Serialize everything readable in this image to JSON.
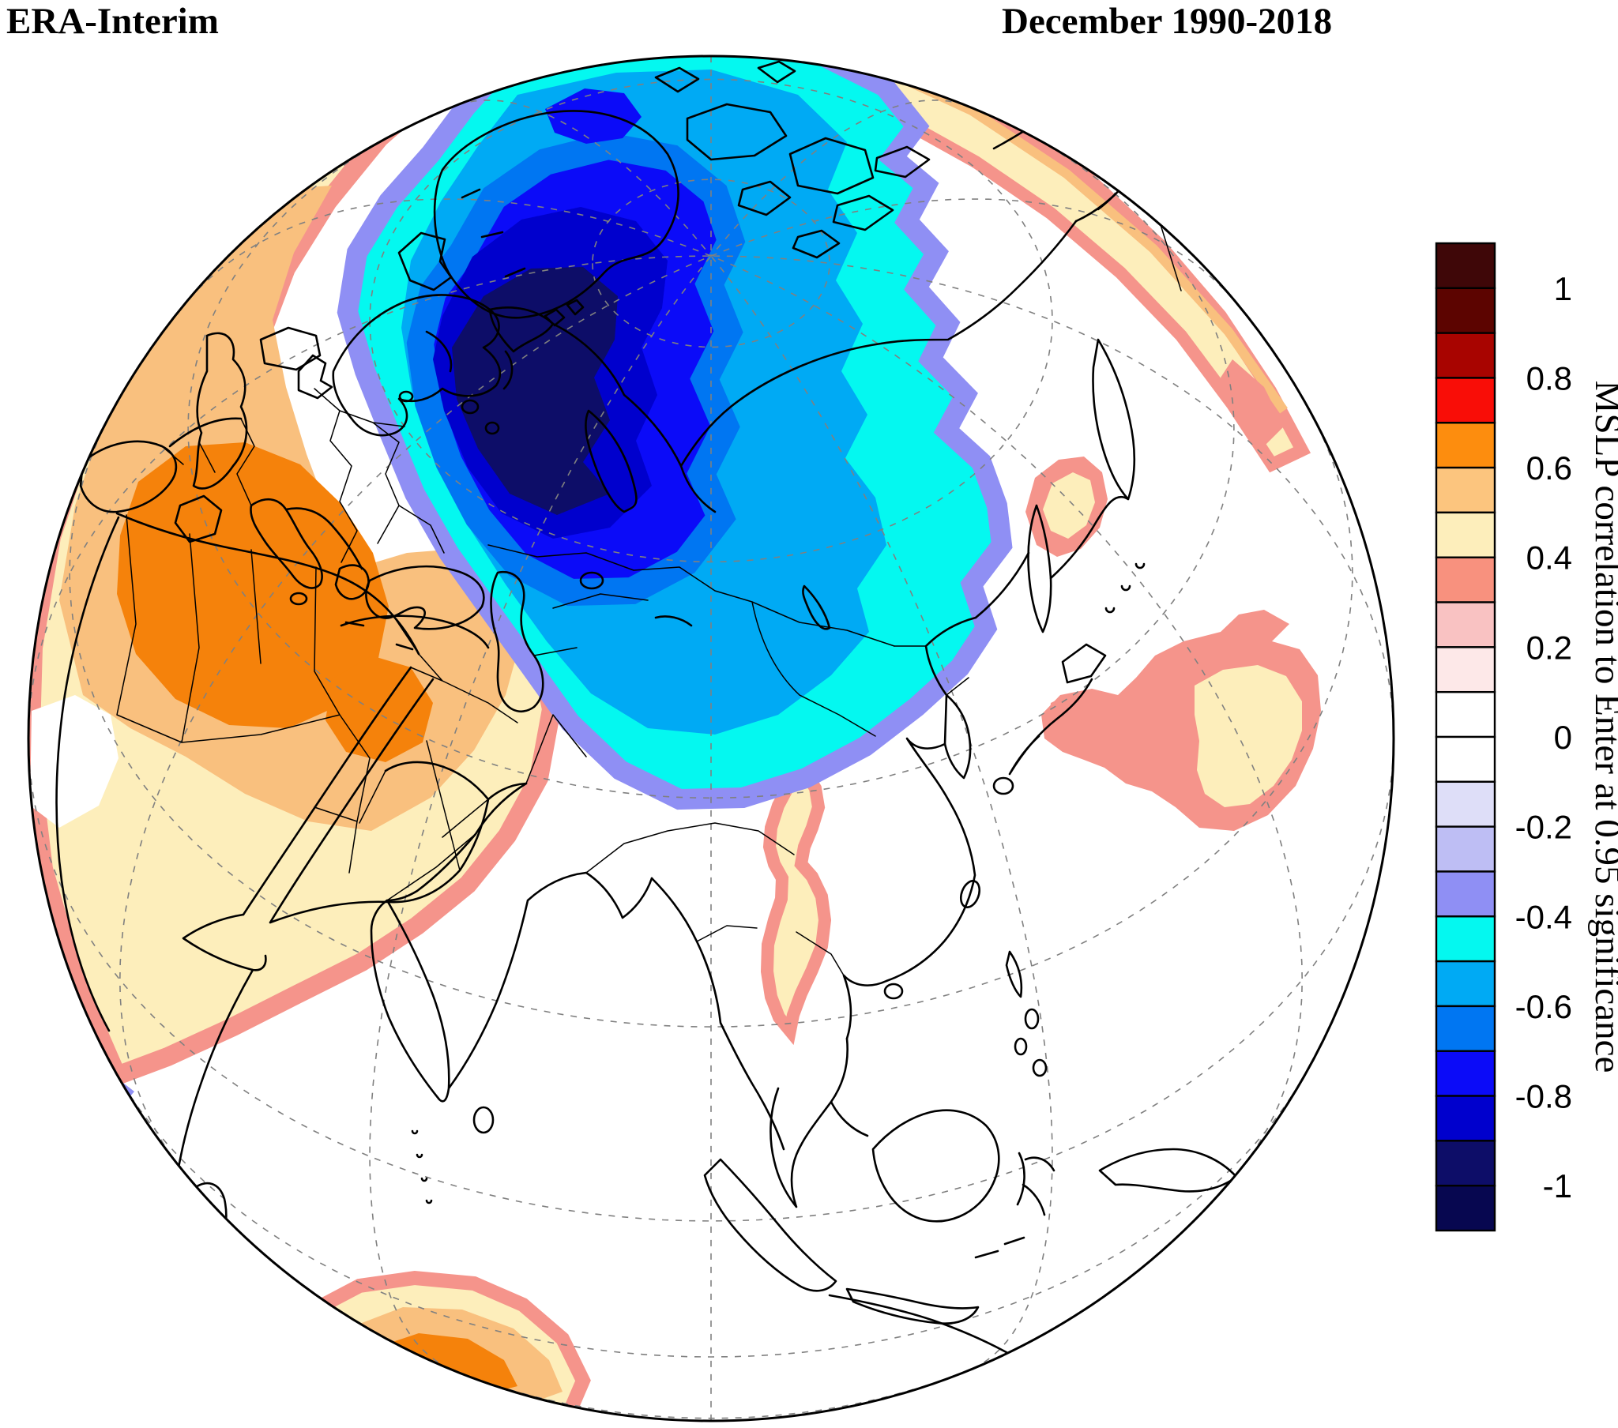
{
  "header": {
    "left_title": "ERA-Interim",
    "right_title": "December 1990-2018"
  },
  "colorbar": {
    "label": "MSLP correlation to Enter at 0.95 significance",
    "tick_labels": [
      "1",
      "0.8",
      "0.6",
      "0.4",
      "0.2",
      "0",
      "-0.2",
      "-0.4",
      "-0.6",
      "-0.8",
      "-1"
    ],
    "cell_colors_top_to_bottom": [
      "#3f0708",
      "#5c0400",
      "#a80400",
      "#f90d07",
      "#fd8d0e",
      "#fcc57e",
      "#fdeebb",
      "#f8917e",
      "#f9c2c2",
      "#fde8e8",
      "#ffffff",
      "#ffffff",
      "#dedef8",
      "#bebef4",
      "#8f8ff4",
      "#04f8f0",
      "#00aaf4",
      "#0076f2",
      "#0b0bf8",
      "#0000cd",
      "#0d0d68",
      "#070750"
    ],
    "outline_color": "#000000"
  },
  "map": {
    "palette": {
      "orange": "#f5820b",
      "sandy": "#f9c07e",
      "cream": "#fdeebb",
      "salmon": "#f5948b",
      "periwinkle": "#8f8ff4",
      "cyan": "#04f8f0",
      "azure": "#00aaf4",
      "dodger": "#0076f2",
      "royal": "#0b0bf8",
      "medium_blue": "#0000cd",
      "navy": "#0d0d68",
      "coastline": "#000000",
      "graticule": "#808080",
      "globe_outline": "#000000"
    }
  },
  "chart_data": {
    "type": "heatmap",
    "subtype": "filled-contour correlation map on an orthographic globe centered on Eurasia/Arctic",
    "dataset": "ERA-Interim",
    "period": "December 1990-2018",
    "title": "ERA-Interim — December 1990-2018",
    "colorbar_label": "MSLP correlation to Enter at 0.95 significance",
    "levels": {
      "min": -1,
      "max": 1,
      "interval": 0.1
    },
    "tick_values": [
      1,
      0.8,
      0.6,
      0.4,
      0.2,
      0,
      -0.2,
      -0.4,
      -0.6,
      -0.8,
      -1
    ],
    "legend_position": "right",
    "grid": "dashed graticule, meridians every 30 deg, parallels every 20 deg",
    "features": [
      {
        "region": "Arctic Ocean, Greenland, Barents/Kara Seas, Scandinavia, northern Siberia",
        "sign": "negative",
        "peak_value": -0.95,
        "extent": "correlations -0.4 to below -0.9; darkest core over Greenland Sea / Scandinavia / Barents Sea"
      },
      {
        "region": "Europe, Mediterranean, Middle East, North Africa",
        "sign": "positive",
        "peak_value": 0.7,
        "extent": "broad 0.3-0.7 area; 0.6-0.7 core over eastern Mediterranean / Middle East"
      },
      {
        "region": "Northwest Pacific east of Japan",
        "sign": "positive",
        "peak_value": 0.5
      },
      {
        "region": "Sea of Okhotsk / Sakhalin",
        "sign": "positive",
        "peak_value": 0.5
      },
      {
        "region": "Indochina / Yunnan meridional strip",
        "sign": "positive",
        "peak_value": 0.5
      },
      {
        "region": "Southern Indian Ocean along lower-left limb",
        "sign": "positive",
        "peak_value": 0.7
      },
      {
        "region": "Northeastern limb arc (North Pacific / Alaska rim)",
        "sign": "positive",
        "peak_value": 0.5
      },
      {
        "region": "Small spot near Madagascar coast (lower-left)",
        "sign": "negative",
        "peak_value": -0.35
      }
    ]
  }
}
